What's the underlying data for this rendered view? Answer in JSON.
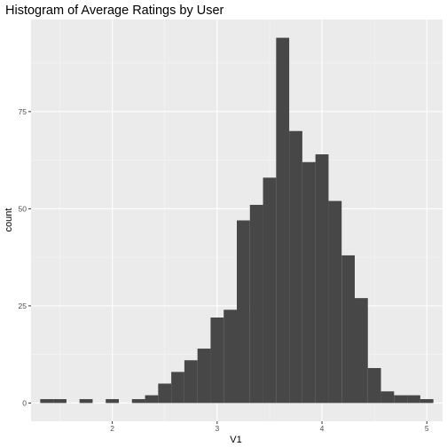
{
  "chart_data": {
    "type": "bar",
    "title": "Histogram of Average Ratings by User",
    "xlabel": "V1",
    "ylabel": "count",
    "bin_width": 0.125,
    "bins": [
      {
        "x0": 1.3125,
        "x1": 1.4375,
        "count": 1
      },
      {
        "x0": 1.4375,
        "x1": 1.5625,
        "count": 1
      },
      {
        "x0": 1.5625,
        "x1": 1.6875,
        "count": 0
      },
      {
        "x0": 1.6875,
        "x1": 1.8125,
        "count": 1
      },
      {
        "x0": 1.8125,
        "x1": 1.9375,
        "count": 0
      },
      {
        "x0": 1.9375,
        "x1": 2.0625,
        "count": 1
      },
      {
        "x0": 2.0625,
        "x1": 2.1875,
        "count": 0
      },
      {
        "x0": 2.1875,
        "x1": 2.3125,
        "count": 1
      },
      {
        "x0": 2.3125,
        "x1": 2.4375,
        "count": 2
      },
      {
        "x0": 2.4375,
        "x1": 2.5625,
        "count": 5
      },
      {
        "x0": 2.5625,
        "x1": 2.6875,
        "count": 8
      },
      {
        "x0": 2.6875,
        "x1": 2.8125,
        "count": 11
      },
      {
        "x0": 2.8125,
        "x1": 2.9375,
        "count": 14
      },
      {
        "x0": 2.9375,
        "x1": 3.0625,
        "count": 22
      },
      {
        "x0": 3.0625,
        "x1": 3.1875,
        "count": 24
      },
      {
        "x0": 3.1875,
        "x1": 3.3125,
        "count": 47
      },
      {
        "x0": 3.3125,
        "x1": 3.4375,
        "count": 51
      },
      {
        "x0": 3.4375,
        "x1": 3.5625,
        "count": 58
      },
      {
        "x0": 3.5625,
        "x1": 3.6875,
        "count": 94
      },
      {
        "x0": 3.6875,
        "x1": 3.8125,
        "count": 70
      },
      {
        "x0": 3.8125,
        "x1": 3.9375,
        "count": 62
      },
      {
        "x0": 3.9375,
        "x1": 4.0625,
        "count": 64
      },
      {
        "x0": 4.0625,
        "x1": 4.1875,
        "count": 52
      },
      {
        "x0": 4.1875,
        "x1": 4.3125,
        "count": 38
      },
      {
        "x0": 4.3125,
        "x1": 4.4375,
        "count": 27
      },
      {
        "x0": 4.4375,
        "x1": 4.5625,
        "count": 9
      },
      {
        "x0": 4.5625,
        "x1": 4.6875,
        "count": 3
      },
      {
        "x0": 4.6875,
        "x1": 4.8125,
        "count": 2
      },
      {
        "x0": 4.8125,
        "x1": 4.9375,
        "count": 2
      },
      {
        "x0": 4.9375,
        "x1": 5.0625,
        "count": 1
      }
    ],
    "xlim": [
      1.225,
      5.15
    ],
    "ylim": [
      -4.7,
      98.7
    ],
    "x_ticks": [
      2,
      3,
      4,
      5
    ],
    "x_minor_ticks": [
      1.5,
      2.5,
      3.5,
      4.5
    ],
    "y_ticks": [
      0,
      25,
      50,
      75
    ],
    "y_minor_ticks": [
      12.5,
      37.5,
      62.5,
      87.5
    ],
    "grid": true,
    "colors": {
      "bar": "#474747",
      "panel": "#ebebeb",
      "grid_major": "#ffffff",
      "grid_minor": "#f5f5f5",
      "tick_text": "#4d4d4d"
    }
  }
}
